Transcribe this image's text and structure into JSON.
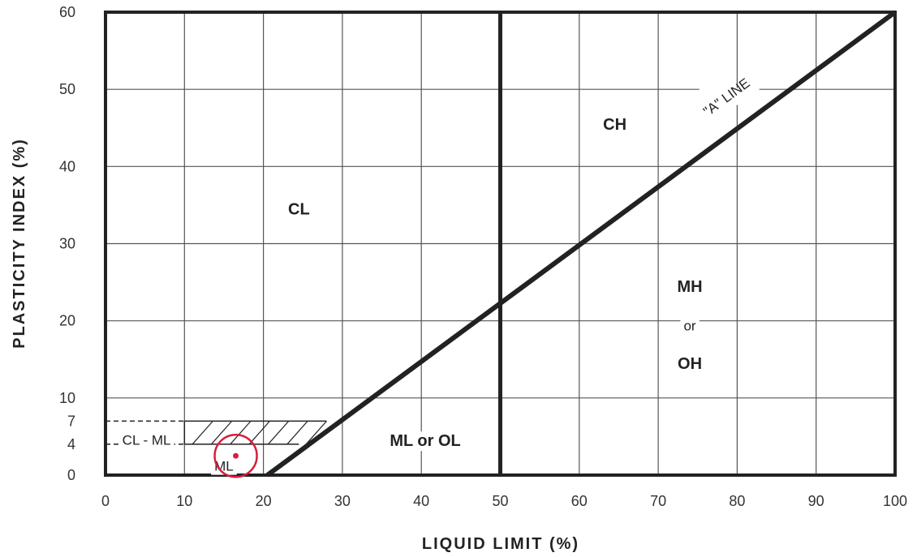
{
  "chart_data": {
    "type": "scatter",
    "xlabel": "LIQUID LIMIT (%)",
    "ylabel": "PLASTICITY INDEX (%)",
    "xlim": [
      0,
      100
    ],
    "ylim": [
      0,
      60
    ],
    "x_ticks": [
      0,
      10,
      20,
      30,
      40,
      50,
      60,
      70,
      80,
      90,
      100
    ],
    "y_ticks": [
      0,
      4,
      7,
      10,
      20,
      30,
      40,
      50,
      60
    ],
    "grid": true,
    "divider_line": {
      "x": 50
    },
    "a_line": {
      "label": "\"A\" LINE",
      "points": [
        [
          20.5,
          0
        ],
        [
          100,
          60
        ]
      ]
    },
    "cl_ml_band": {
      "y_from": 4,
      "y_to": 7,
      "x_from": 0,
      "x_to": 28
    },
    "regions": [
      {
        "label": "CL",
        "x": 24.5,
        "y": 34.5
      },
      {
        "label": "CH",
        "x": 64.5,
        "y": 45.5
      },
      {
        "label": "MH",
        "x": 74,
        "y": 24.5
      },
      {
        "label": "or",
        "x": 74,
        "y": 19.5
      },
      {
        "label": "OH",
        "x": 74,
        "y": 14.5
      },
      {
        "label": "ML or OL",
        "x": 40.5,
        "y": 4.5
      },
      {
        "label": "CL - ML",
        "x": 5.2,
        "y": 4.7
      },
      {
        "label": "ML",
        "x": 15,
        "y": 1.3
      }
    ],
    "points": [
      {
        "x": 16.5,
        "y": 2.5,
        "color": "#d81e3c"
      }
    ],
    "colors": {
      "grid": "#555555",
      "line": "#222222",
      "point": "#d81e3c"
    }
  }
}
